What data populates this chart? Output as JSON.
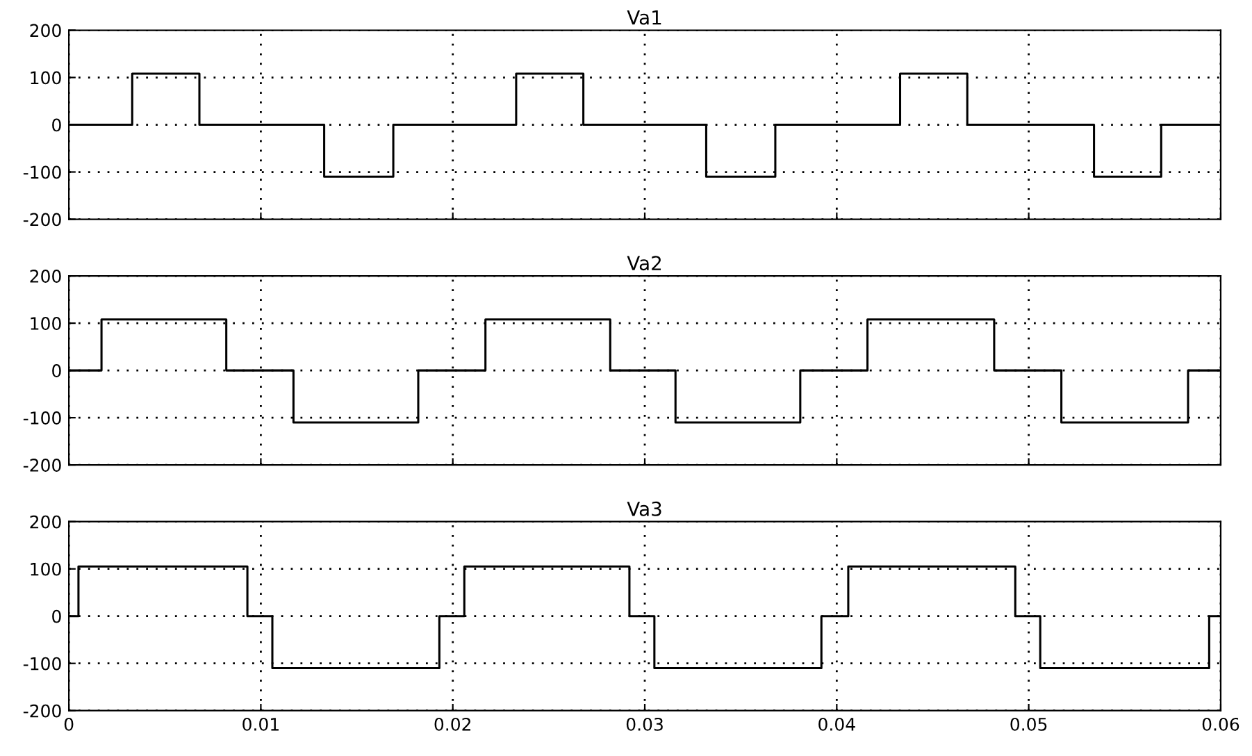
{
  "chart_data": [
    {
      "type": "step",
      "title": "Va1",
      "x": [
        0,
        0.0033,
        0.0068,
        0.0133,
        0.0169,
        0.0233,
        0.0268,
        0.0332,
        0.0368,
        0.0433,
        0.0468,
        0.0534,
        0.0569,
        0.06
      ],
      "series": [
        {
          "color": "#000000",
          "values": [
            0,
            108,
            0,
            -110,
            0,
            108,
            0,
            -110,
            0,
            108,
            0,
            -110,
            0,
            0
          ]
        }
      ],
      "xlim": [
        0,
        0.06
      ],
      "ylim": [
        -200,
        200
      ],
      "xticks": [
        0,
        0.01,
        0.02,
        0.03,
        0.04,
        0.05,
        0.06
      ],
      "yticks": [
        -200,
        -100,
        0,
        100,
        200
      ],
      "tick_labels": "y",
      "grid": true,
      "line_style": "solid"
    },
    {
      "type": "step",
      "title": "Va2",
      "x": [
        0,
        0.0017,
        0.0082,
        0.0117,
        0.0182,
        0.0217,
        0.0282,
        0.0316,
        0.0381,
        0.0416,
        0.0482,
        0.0517,
        0.0583,
        0.06
      ],
      "series": [
        {
          "color": "#000000",
          "values": [
            0,
            108,
            0,
            -110,
            0,
            108,
            0,
            -110,
            0,
            108,
            0,
            -110,
            0,
            0
          ]
        }
      ],
      "xlim": [
        0,
        0.06
      ],
      "ylim": [
        -200,
        200
      ],
      "xticks": [
        0,
        0.01,
        0.02,
        0.03,
        0.04,
        0.05,
        0.06
      ],
      "yticks": [
        -200,
        -100,
        0,
        100,
        200
      ],
      "tick_labels": "y",
      "grid": true,
      "line_style": "solid"
    },
    {
      "type": "step",
      "title": "Va3",
      "x": [
        0,
        0.0005,
        0.0093,
        0.0106,
        0.0193,
        0.0206,
        0.0292,
        0.0305,
        0.0392,
        0.0406,
        0.0493,
        0.0506,
        0.0594,
        0.06
      ],
      "series": [
        {
          "color": "#000000",
          "values": [
            0,
            105,
            0,
            -110,
            0,
            105,
            0,
            -110,
            0,
            105,
            0,
            -110,
            0,
            0
          ]
        }
      ],
      "xlim": [
        0,
        0.06
      ],
      "ylim": [
        -200,
        200
      ],
      "xticks": [
        0,
        0.01,
        0.02,
        0.03,
        0.04,
        0.05,
        0.06
      ],
      "yticks": [
        -200,
        -100,
        0,
        100,
        200
      ],
      "grid": true,
      "line_style": "solid"
    }
  ]
}
